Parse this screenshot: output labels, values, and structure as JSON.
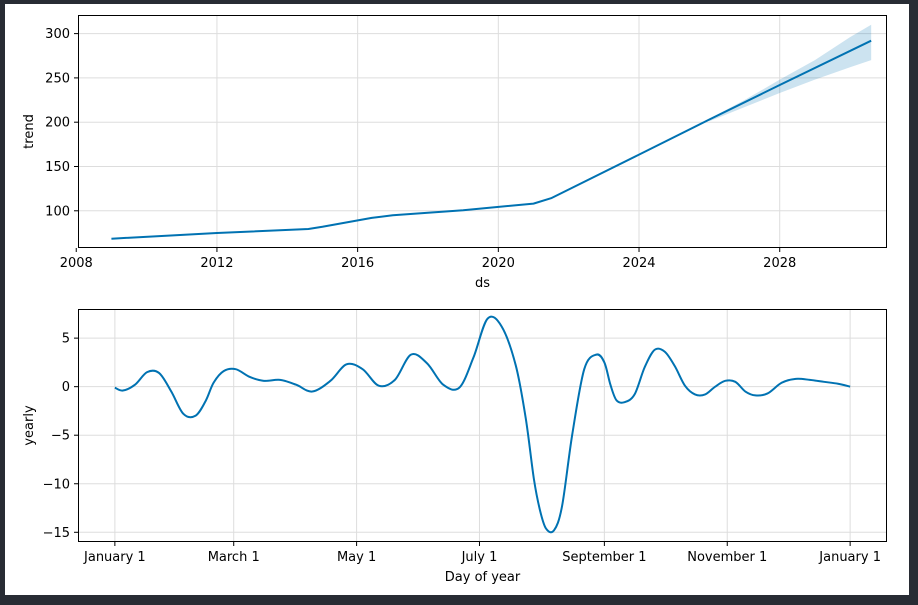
{
  "colors": {
    "line": "#0072b2",
    "band": "#0072b2",
    "grid": "#dddddd",
    "frame": "#000000",
    "background": "#ffffff",
    "outer": "#282c34"
  },
  "chart_data": [
    {
      "type": "line",
      "ylabel": "trend",
      "xlabel": "ds",
      "x_ticks": [
        {
          "value": 2008,
          "label": "2008"
        },
        {
          "value": 2012,
          "label": "2012"
        },
        {
          "value": 2016,
          "label": "2016"
        },
        {
          "value": 2020,
          "label": "2020"
        },
        {
          "value": 2024,
          "label": "2024"
        },
        {
          "value": 2028,
          "label": "2028"
        }
      ],
      "y_ticks": [
        100,
        150,
        200,
        250,
        300
      ],
      "xlim": [
        2008.05,
        2031.05
      ],
      "ylim": [
        58,
        321
      ],
      "grid": true,
      "series": [
        {
          "x": [
            2009.0,
            2012.0,
            2014.6,
            2015.0,
            2016.4,
            2017.0,
            2019.0,
            2021.0,
            2021.5,
            2024.0,
            2026.0,
            2028.0,
            2030.6
          ],
          "y": [
            68.5,
            74.9,
            79.5,
            82,
            92,
            95,
            100.6,
            108.1,
            114.2,
            163.4,
            203,
            242,
            292
          ]
        }
      ],
      "band": {
        "x": [
          2026.0,
          2027.0,
          2028.0,
          2029.0,
          2030.0,
          2030.6
        ],
        "lower": [
          201,
          217,
          233,
          248,
          262,
          270
        ],
        "upper": [
          204,
          225,
          248,
          270,
          296,
          310
        ]
      }
    },
    {
      "type": "line",
      "ylabel": "yearly",
      "xlabel": "Day of year",
      "x_ticks": [
        {
          "value": 0,
          "label": "January 1"
        },
        {
          "value": 59,
          "label": "March 1"
        },
        {
          "value": 120,
          "label": "May 1"
        },
        {
          "value": 181,
          "label": "July 1"
        },
        {
          "value": 243,
          "label": "September 1"
        },
        {
          "value": 304,
          "label": "November 1"
        },
        {
          "value": 365,
          "label": "January 1"
        }
      ],
      "y_ticks": [
        -15,
        -10,
        -5,
        0,
        5
      ],
      "xlim": [
        -18.3,
        383.3
      ],
      "ylim": [
        -16,
        8
      ],
      "grid": true,
      "series": [
        {
          "x": [
            0,
            4,
            10,
            16,
            22,
            28,
            34,
            40,
            45,
            49,
            54,
            60,
            67,
            74,
            82,
            90,
            98,
            107,
            115,
            123,
            131,
            139,
            147,
            155,
            163,
            171,
            178,
            185,
            192,
            199,
            204,
            208,
            211,
            214,
            218,
            222,
            227,
            233,
            239,
            243,
            246,
            249,
            253,
            258,
            263,
            268,
            273,
            278,
            283,
            288,
            293,
            298,
            303,
            308,
            313,
            318,
            324,
            331,
            338,
            345,
            352,
            359,
            365
          ],
          "y": [
            -0.1,
            -0.4,
            0.2,
            1.5,
            1.4,
            -0.5,
            -2.8,
            -3.0,
            -1.5,
            0.4,
            1.6,
            1.8,
            1.0,
            0.6,
            0.7,
            0.2,
            -0.5,
            0.6,
            2.3,
            1.8,
            0.1,
            0.7,
            3.3,
            2.4,
            0.2,
            -0.1,
            3.0,
            7.0,
            6.2,
            2.2,
            -3.3,
            -9.5,
            -12.7,
            -14.6,
            -14.8,
            -12.3,
            -5.0,
            1.8,
            3.3,
            2.5,
            0.2,
            -1.4,
            -1.6,
            -0.8,
            2.0,
            3.8,
            3.6,
            2.1,
            0.1,
            -0.8,
            -0.8,
            0.0,
            0.6,
            0.5,
            -0.5,
            -0.9,
            -0.7,
            0.4,
            0.8,
            0.7,
            0.5,
            0.3,
            0.0
          ]
        }
      ]
    }
  ]
}
